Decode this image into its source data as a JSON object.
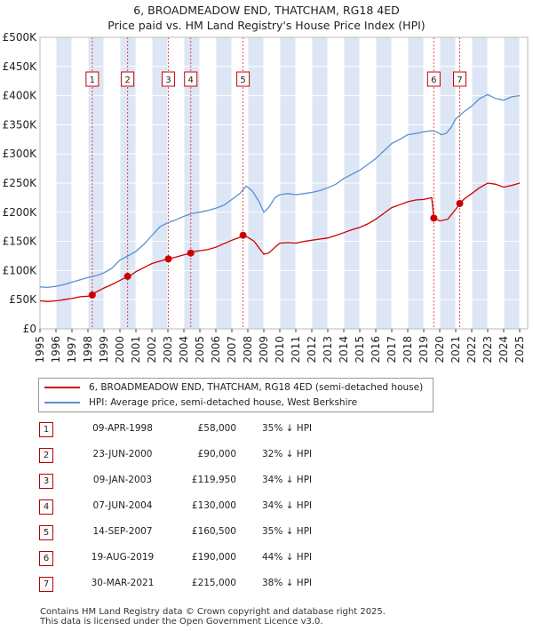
{
  "title_line1": "6, BROADMEADOW END, THATCHAM, RG18 4ED",
  "title_line2": "Price paid vs. HM Land Registry's House Price Index (HPI)",
  "legend": {
    "property": "6, BROADMEADOW END, THATCHAM, RG18 4ED (semi-detached house)",
    "hpi": "HPI: Average price, semi-detached house, West Berkshire"
  },
  "colors": {
    "property": "#cc0000",
    "hpi": "#5b8fce",
    "band": "#dde6f5",
    "marker": "#cc0000"
  },
  "sales": [
    {
      "n": "1",
      "date": "09-APR-1998",
      "price": "£58,000",
      "hpi": "35% ↓ HPI"
    },
    {
      "n": "2",
      "date": "23-JUN-2000",
      "price": "£90,000",
      "hpi": "32% ↓ HPI"
    },
    {
      "n": "3",
      "date": "09-JAN-2003",
      "price": "£119,950",
      "hpi": "34% ↓ HPI"
    },
    {
      "n": "4",
      "date": "07-JUN-2004",
      "price": "£130,000",
      "hpi": "34% ↓ HPI"
    },
    {
      "n": "5",
      "date": "14-SEP-2007",
      "price": "£160,500",
      "hpi": "35% ↓ HPI"
    },
    {
      "n": "6",
      "date": "19-AUG-2019",
      "price": "£190,000",
      "hpi": "44% ↓ HPI"
    },
    {
      "n": "7",
      "date": "30-MAR-2021",
      "price": "£215,000",
      "hpi": "38% ↓ HPI"
    }
  ],
  "footer_line1": "Contains HM Land Registry data © Crown copyright and database right 2025.",
  "footer_line2": "This data is licensed under the Open Government Licence v3.0.",
  "chart_data": {
    "type": "line",
    "title": "6, BROADMEADOW END, THATCHAM, RG18 4ED — Price paid vs. HM Land Registry's House Price Index (HPI)",
    "xlabel": "",
    "ylabel": "",
    "xlim": [
      1995,
      2025.5
    ],
    "ylim": [
      0,
      500000
    ],
    "y_ticks": [
      0,
      50000,
      100000,
      150000,
      200000,
      250000,
      300000,
      350000,
      400000,
      450000,
      500000
    ],
    "y_tick_labels": [
      "£0",
      "£50K",
      "£100K",
      "£150K",
      "£200K",
      "£250K",
      "£300K",
      "£350K",
      "£400K",
      "£450K",
      "£500K"
    ],
    "x_ticks": [
      1995,
      1996,
      1997,
      1998,
      1999,
      2000,
      2001,
      2002,
      2003,
      2004,
      2005,
      2006,
      2007,
      2008,
      2009,
      2010,
      2011,
      2012,
      2013,
      2014,
      2015,
      2016,
      2017,
      2018,
      2019,
      2020,
      2021,
      2022,
      2023,
      2024,
      2025
    ],
    "grid": true,
    "shaded_years": [
      1996,
      1998,
      2000,
      2002,
      2004,
      2006,
      2008,
      2010,
      2012,
      2014,
      2016,
      2018,
      2020,
      2022,
      2024
    ],
    "sale_markers": [
      {
        "n": "1",
        "x": 1998.27,
        "y": 58000
      },
      {
        "n": "2",
        "x": 2000.48,
        "y": 90000
      },
      {
        "n": "3",
        "x": 2003.03,
        "y": 119950
      },
      {
        "n": "4",
        "x": 2004.43,
        "y": 130000
      },
      {
        "n": "5",
        "x": 2007.7,
        "y": 160500
      },
      {
        "n": "6",
        "x": 2019.63,
        "y": 190000
      },
      {
        "n": "7",
        "x": 2021.25,
        "y": 215000
      }
    ],
    "series": [
      {
        "name": "HPI: Average price, semi-detached house, West Berkshire",
        "x": [
          1995.0,
          1995.5,
          1996.0,
          1996.5,
          1997.0,
          1997.5,
          1998.0,
          1998.5,
          1999.0,
          1999.5,
          2000.0,
          2000.5,
          2001.0,
          2001.5,
          2002.0,
          2002.5,
          2003.0,
          2003.5,
          2004.0,
          2004.5,
          2005.0,
          2005.5,
          2006.0,
          2006.5,
          2007.0,
          2007.5,
          2007.9,
          2008.3,
          2008.7,
          2009.0,
          2009.3,
          2009.7,
          2010.0,
          2010.5,
          2011.0,
          2011.5,
          2012.0,
          2012.5,
          2013.0,
          2013.5,
          2014.0,
          2014.5,
          2015.0,
          2015.5,
          2016.0,
          2016.5,
          2017.0,
          2017.5,
          2018.0,
          2018.5,
          2019.0,
          2019.5,
          2019.8,
          2020.1,
          2020.4,
          2020.7,
          2021.0,
          2021.5,
          2022.0,
          2022.5,
          2023.0,
          2023.5,
          2024.0,
          2024.5,
          2025.0
        ],
        "values": [
          72000,
          71000,
          73000,
          76000,
          80000,
          84000,
          88000,
          91000,
          96000,
          104000,
          118000,
          125000,
          133000,
          145000,
          160000,
          175000,
          182000,
          187000,
          193000,
          198000,
          200000,
          203000,
          207000,
          212000,
          222000,
          232000,
          245000,
          236000,
          218000,
          200000,
          208000,
          225000,
          230000,
          232000,
          230000,
          232000,
          234000,
          237000,
          242000,
          248000,
          258000,
          265000,
          272000,
          282000,
          292000,
          305000,
          318000,
          325000,
          333000,
          335000,
          338000,
          340000,
          338000,
          333000,
          335000,
          345000,
          360000,
          372000,
          382000,
          395000,
          402000,
          395000,
          392000,
          398000,
          400000
        ]
      },
      {
        "name": "6, BROADMEADOW END, THATCHAM, RG18 4ED (semi-detached house)",
        "x": [
          1995.0,
          1995.5,
          1996.0,
          1996.5,
          1997.0,
          1997.5,
          1998.0,
          1998.27,
          1998.5,
          1999.0,
          1999.5,
          2000.0,
          2000.48,
          2000.7,
          2001.0,
          2001.5,
          2002.0,
          2002.5,
          2003.03,
          2003.5,
          2004.0,
          2004.43,
          2004.7,
          2005.0,
          2005.5,
          2006.0,
          2006.5,
          2007.0,
          2007.5,
          2007.7,
          2008.0,
          2008.4,
          2008.8,
          2009.0,
          2009.3,
          2009.7,
          2010.0,
          2010.5,
          2011.0,
          2011.5,
          2012.0,
          2012.5,
          2013.0,
          2013.5,
          2014.0,
          2014.5,
          2015.0,
          2015.5,
          2016.0,
          2016.5,
          2017.0,
          2017.5,
          2018.0,
          2018.5,
          2019.0,
          2019.5,
          2019.63,
          2019.8,
          2020.0,
          2020.5,
          2021.0,
          2021.25,
          2021.5,
          2022.0,
          2022.5,
          2023.0,
          2023.5,
          2024.0,
          2024.5,
          2025.0
        ],
        "values": [
          48000,
          47000,
          48000,
          50000,
          52000,
          55000,
          56000,
          58000,
          63000,
          70000,
          76000,
          83000,
          90000,
          92000,
          98000,
          105000,
          112000,
          116000,
          119950,
          123000,
          127000,
          130000,
          133000,
          134000,
          136000,
          140000,
          146000,
          152000,
          157000,
          160500,
          157000,
          150000,
          135000,
          128000,
          130000,
          140000,
          147000,
          148000,
          147000,
          150000,
          152000,
          154000,
          156000,
          160000,
          165000,
          170000,
          174000,
          180000,
          188000,
          198000,
          208000,
          213000,
          218000,
          221000,
          222000,
          225000,
          190000,
          188000,
          185000,
          188000,
          205000,
          215000,
          222000,
          232000,
          242000,
          250000,
          248000,
          243000,
          246000,
          250000
        ]
      }
    ]
  }
}
